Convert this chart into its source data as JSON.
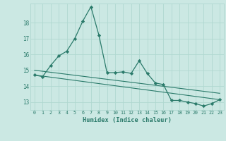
{
  "xlabel": "Humidex (Indice chaleur)",
  "bg_color": "#cbe8e3",
  "line_color": "#2a7a6a",
  "grid_color": "#b0d8d0",
  "ylim": [
    12.5,
    19.2
  ],
  "xlim": [
    -0.5,
    23.5
  ],
  "yticks": [
    13,
    14,
    15,
    16,
    17,
    18
  ],
  "xticks": [
    0,
    1,
    2,
    3,
    4,
    5,
    6,
    7,
    8,
    9,
    10,
    11,
    12,
    13,
    14,
    15,
    16,
    17,
    18,
    19,
    20,
    21,
    22,
    23
  ],
  "curve1_x": [
    0,
    1,
    2,
    3,
    4,
    5,
    6,
    7,
    8,
    9,
    10,
    11,
    12,
    13,
    14,
    15,
    16,
    17,
    18,
    19,
    20,
    21,
    22,
    23
  ],
  "curve1_y": [
    14.7,
    14.6,
    15.3,
    15.9,
    16.2,
    17.0,
    18.1,
    19.0,
    17.2,
    14.85,
    14.85,
    14.9,
    14.8,
    15.6,
    14.8,
    14.2,
    14.1,
    13.1,
    13.1,
    13.0,
    12.9,
    12.75,
    12.9,
    13.15
  ],
  "trend1_x": [
    0,
    23
  ],
  "trend1_y": [
    15.0,
    13.55
  ],
  "trend2_x": [
    0,
    23
  ],
  "trend2_y": [
    14.7,
    13.15
  ]
}
